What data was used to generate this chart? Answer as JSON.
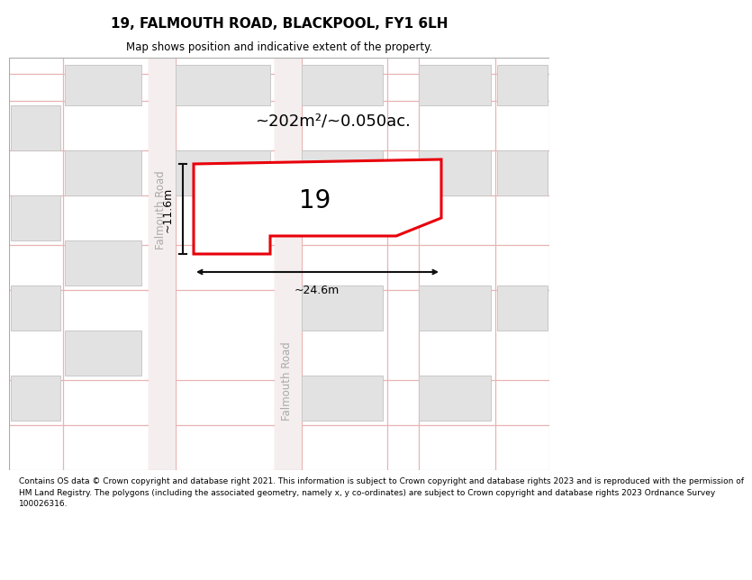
{
  "title": "19, FALMOUTH ROAD, BLACKPOOL, FY1 6LH",
  "subtitle": "Map shows position and indicative extent of the property.",
  "footer_line1": "Contains OS data © Crown copyright and database right 2021. This information is subject to Crown copyright and database rights 2023 and is reproduced with the permission of",
  "footer_line2": "HM Land Registry. The polygons (including the associated geometry, namely x, y co-ordinates) are subject to Crown copyright and database rights 2023 Ordnance Survey",
  "footer_line3": "100026316.",
  "map_bg": "#f0f0f0",
  "building_fill": "#e2e2e2",
  "building_stroke": "#c8c8c8",
  "road_line": "#e8b4b4",
  "road_fill": "#f8f0f0",
  "highlight_fill": "#ffffff",
  "highlight_stroke": "#e8000a",
  "dim_color": "#111111",
  "label_color": "#aaaaaa",
  "area_label": "~202m²/~0.050ac.",
  "width_label": "~24.6m",
  "height_label": "~11.6m",
  "property_number": "19",
  "title_fontsize": 11,
  "subtitle_fontsize": 8.5,
  "footer_fontsize": 6.5,
  "area_fontsize": 13,
  "num_fontsize": 20,
  "dim_fontsize": 9,
  "road_label_fontsize": 8.5
}
